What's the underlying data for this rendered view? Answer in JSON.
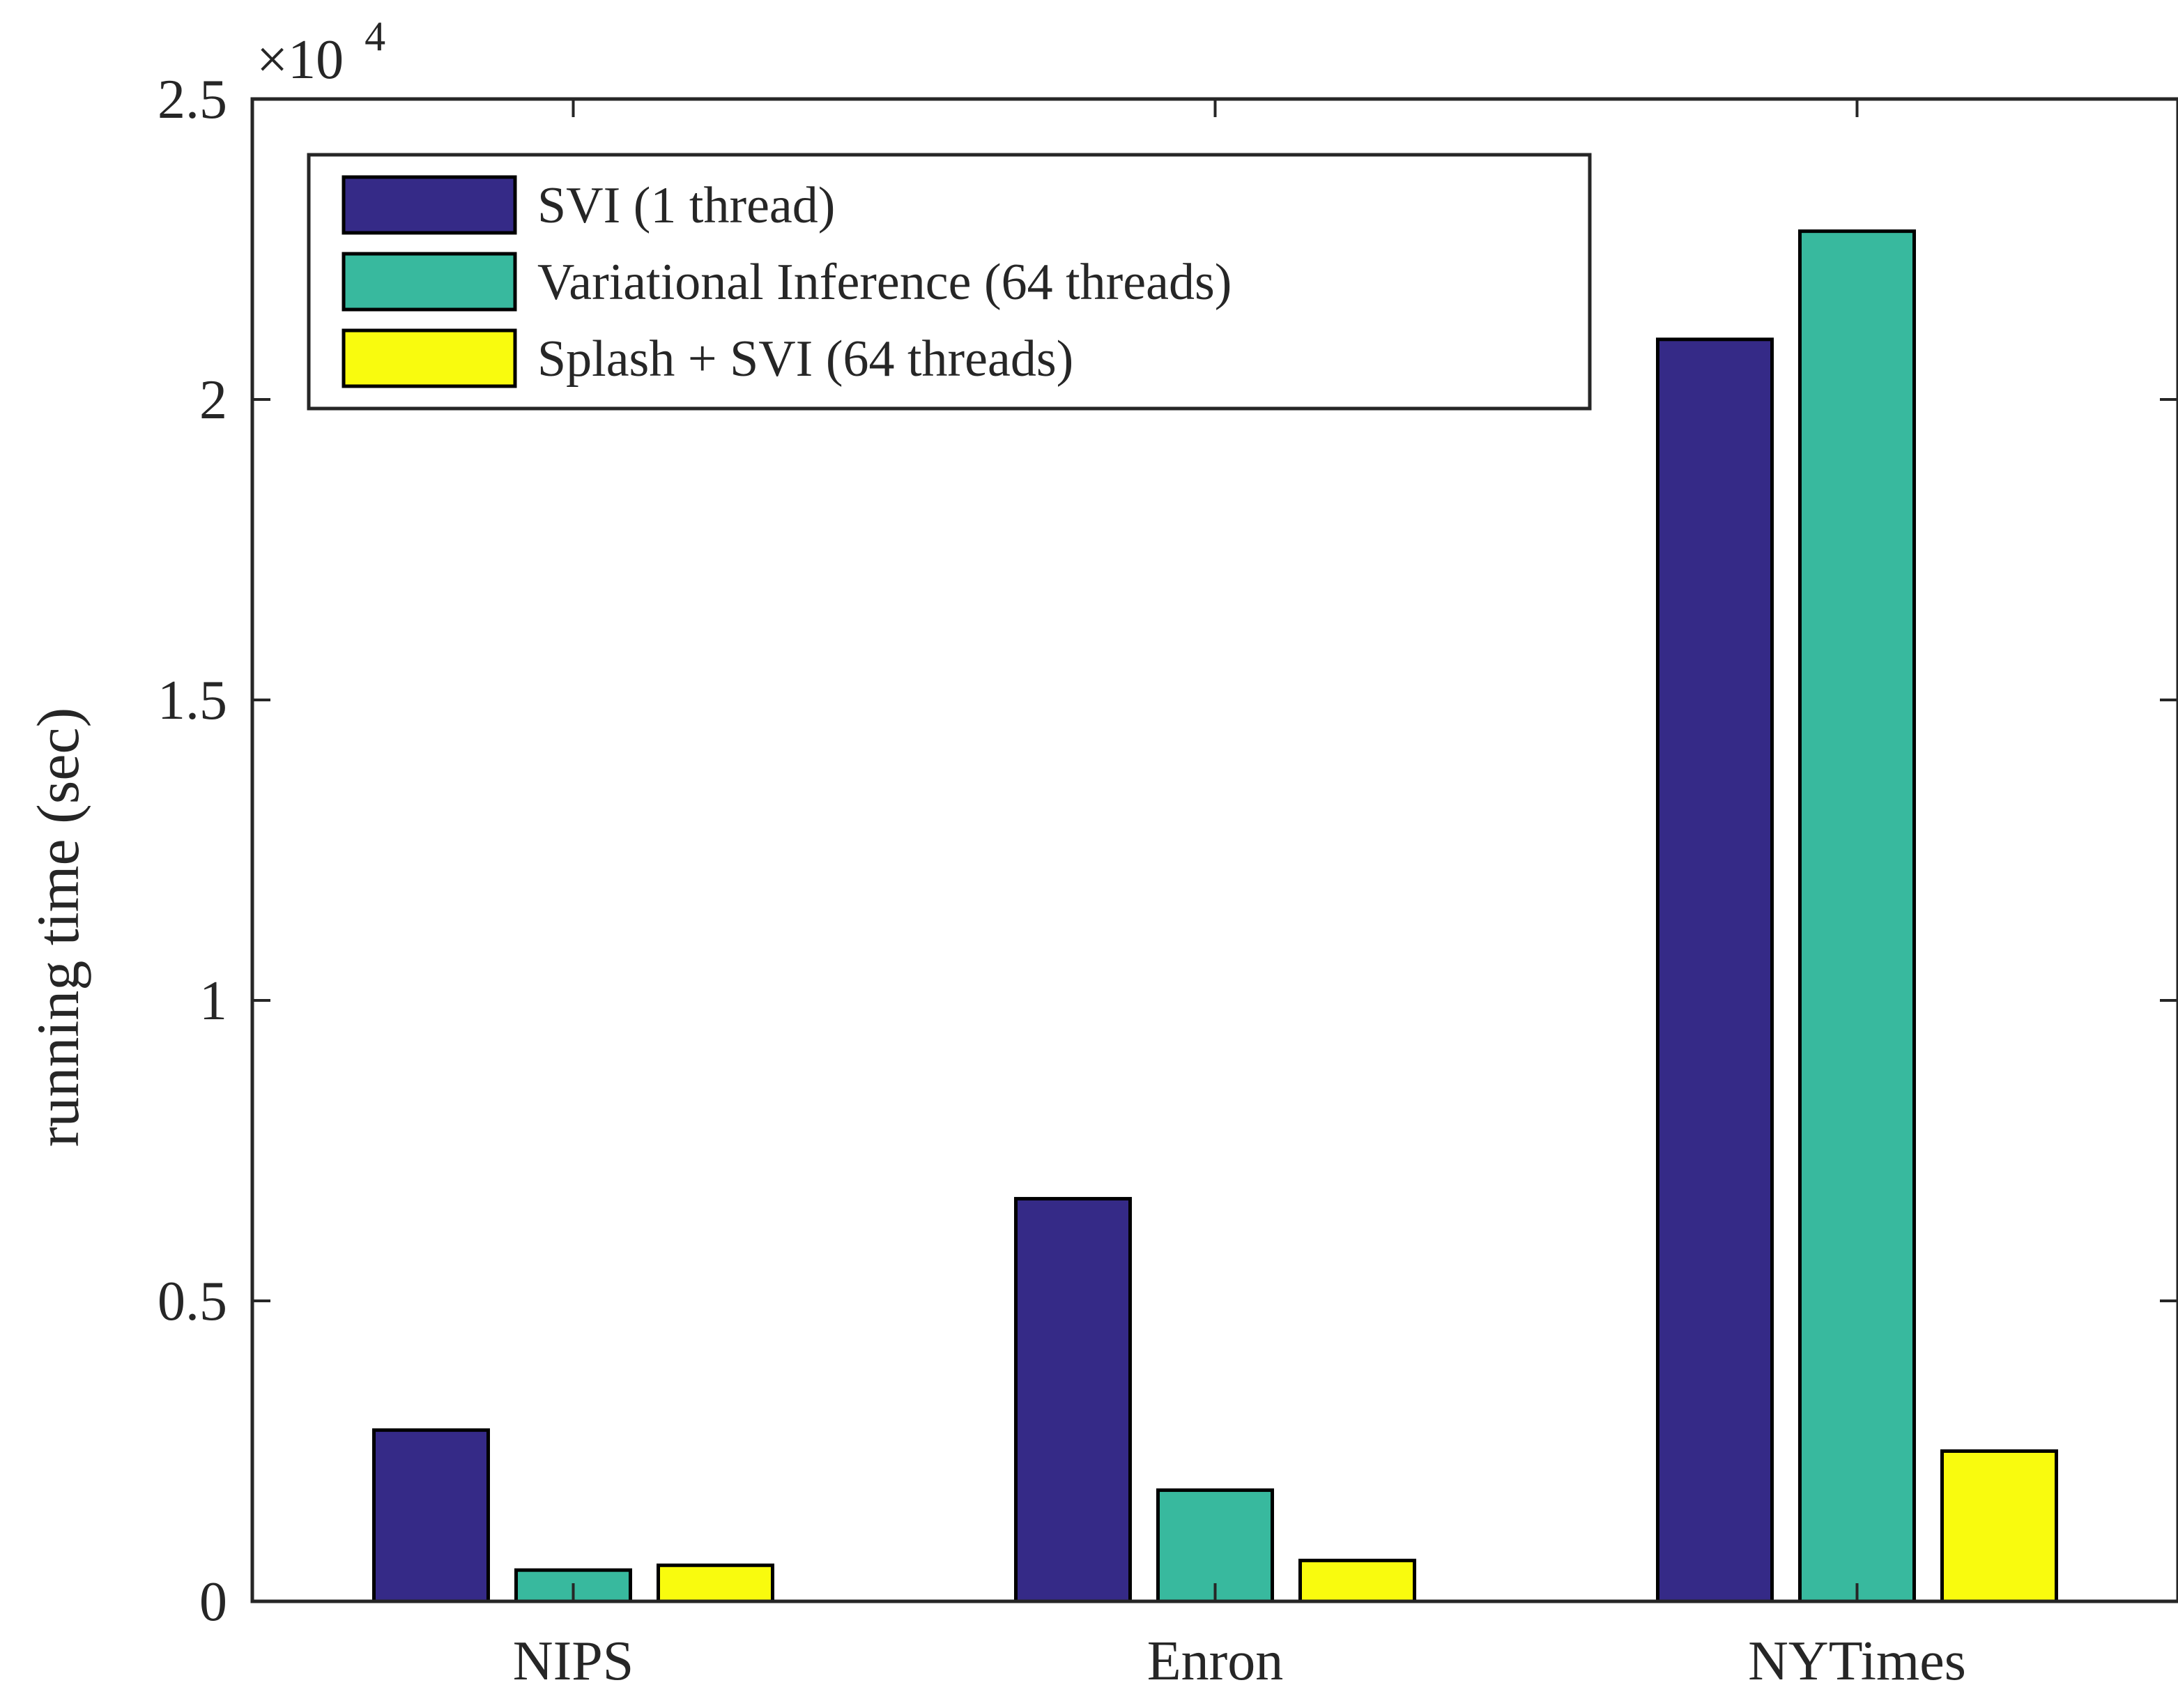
{
  "chart_data": {
    "type": "bar",
    "categories": [
      "NIPS",
      "Enron",
      "NYTimes"
    ],
    "series": [
      {
        "name": "SVI (1 thread)",
        "color": "#352a87",
        "values": [
          2850,
          6700,
          21000
        ]
      },
      {
        "name": "Variational Inference (64 threads)",
        "color": "#38b99e",
        "values": [
          520,
          1850,
          22800
        ]
      },
      {
        "name": "Splash + SVI (64 threads)",
        "color": "#f9fb0e",
        "values": [
          600,
          680,
          2500
        ]
      }
    ],
    "ylabel": "running time (sec)",
    "xlabel": "",
    "ylim": [
      0,
      25000
    ],
    "yticks": [
      0,
      5000,
      10000,
      15000,
      20000,
      25000
    ],
    "ytick_labels": [
      "0",
      "0.5",
      "1",
      "1.5",
      "2",
      "2.5"
    ],
    "y_exponent": {
      "base": "×10",
      "power": "4"
    },
    "grid": false,
    "legend_position": "top-left"
  }
}
